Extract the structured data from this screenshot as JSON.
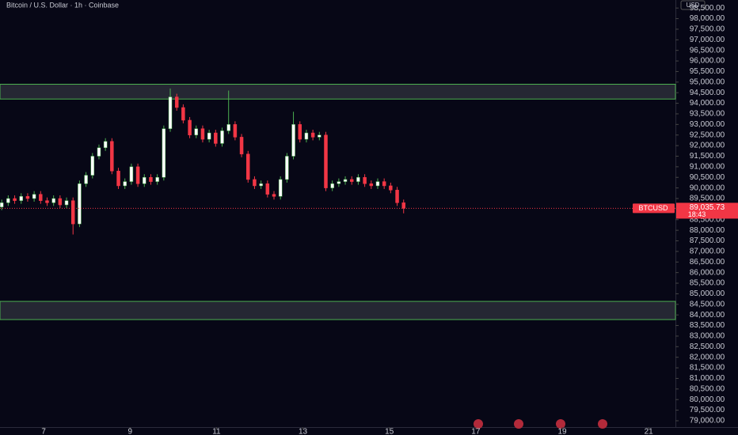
{
  "chart_data": {
    "type": "candlestick",
    "title": "Bitcoin / U.S. Dollar · 1h · Coinbase",
    "currency": "USD",
    "symbol": "BTCUSD",
    "last_label": "89,035.73",
    "countdown": "18:43",
    "x": [
      6.03,
      6.18,
      6.33,
      6.48,
      6.63,
      6.78,
      6.93,
      7.08,
      7.23,
      7.38,
      7.53,
      7.68,
      7.83,
      7.98,
      8.13,
      8.28,
      8.43,
      8.58,
      8.73,
      8.88,
      9.03,
      9.18,
      9.33,
      9.48,
      9.63,
      9.78,
      9.93,
      10.08,
      10.23,
      10.38,
      10.53,
      10.68,
      10.83,
      10.98,
      11.13,
      11.28,
      11.43,
      11.58,
      11.73,
      11.88,
      12.03,
      12.18,
      12.33,
      12.48,
      12.63,
      12.78,
      12.93,
      13.08,
      13.23,
      13.38,
      13.53,
      13.68,
      13.83,
      13.98,
      14.13,
      14.28,
      14.43,
      14.58,
      14.73,
      14.88,
      15.03,
      15.18,
      15.33
    ],
    "open": [
      89100,
      89300,
      89500,
      89400,
      89600,
      89500,
      89700,
      89400,
      89300,
      89500,
      89200,
      89400,
      88300,
      90200,
      90600,
      91500,
      91900,
      92200,
      90800,
      90100,
      90300,
      91000,
      90200,
      90500,
      90300,
      90500,
      92800,
      94300,
      93800,
      93200,
      92500,
      92800,
      92300,
      92600,
      92100,
      92700,
      93000,
      92400,
      91600,
      90400,
      90100,
      90200,
      89700,
      89600,
      90400,
      91500,
      93000,
      92300,
      92600,
      92400,
      92500,
      90000,
      90200,
      90300,
      90400,
      90300,
      90500,
      90200,
      90100,
      90300,
      90100,
      89900,
      89300
    ],
    "high": [
      89450,
      89650,
      89650,
      89750,
      89750,
      89850,
      89850,
      89550,
      89650,
      89650,
      89550,
      89550,
      90350,
      90750,
      91650,
      92050,
      92350,
      92350,
      90950,
      90450,
      91150,
      91150,
      90650,
      90650,
      90650,
      92950,
      94700,
      94450,
      93950,
      93350,
      92950,
      92950,
      92750,
      92750,
      92850,
      94600,
      93150,
      92550,
      91750,
      90550,
      90350,
      90350,
      89850,
      90550,
      91650,
      93600,
      93150,
      92750,
      92750,
      92650,
      92650,
      90350,
      90450,
      90550,
      90550,
      90650,
      90650,
      90350,
      90450,
      90450,
      90250,
      90050,
      89450
    ],
    "low": [
      88950,
      89150,
      89250,
      89250,
      89350,
      89350,
      89250,
      89150,
      89150,
      89050,
      89050,
      87800,
      88150,
      90050,
      90450,
      91350,
      91750,
      90650,
      89950,
      89950,
      90150,
      90050,
      90050,
      90150,
      90150,
      90350,
      92650,
      93650,
      93050,
      92350,
      92350,
      92150,
      92150,
      91950,
      91950,
      92550,
      92250,
      91450,
      90250,
      89950,
      89950,
      89550,
      89450,
      89450,
      90250,
      91350,
      92150,
      92150,
      92250,
      92250,
      89850,
      89850,
      90050,
      90150,
      90150,
      90150,
      90050,
      89950,
      89950,
      89950,
      89750,
      89150,
      88800
    ],
    "close": [
      89300,
      89500,
      89400,
      89600,
      89500,
      89700,
      89400,
      89300,
      89500,
      89200,
      89400,
      88300,
      90200,
      90600,
      91500,
      91900,
      92200,
      90800,
      90100,
      90300,
      91000,
      90200,
      90500,
      90300,
      90500,
      92800,
      94300,
      93800,
      93200,
      92500,
      92800,
      92300,
      92600,
      92100,
      92700,
      93000,
      92400,
      91600,
      90400,
      90100,
      90200,
      89700,
      89600,
      90400,
      91500,
      93000,
      92300,
      92600,
      92400,
      92500,
      90000,
      90200,
      90300,
      90400,
      90300,
      90500,
      90200,
      90100,
      90300,
      90100,
      89900,
      89300,
      89035.73
    ],
    "up_color": "#ffffff",
    "up_wick_color": "#4caf50",
    "down_color": "#f23645",
    "zones": [
      {
        "from": 94200,
        "to": 94900
      },
      {
        "from": 83780,
        "to": 84640
      }
    ],
    "zone_color": "#4caf50",
    "xlim": [
      5.99,
      21.62
    ],
    "xticks": [
      7,
      9,
      11,
      13,
      15,
      17,
      19,
      21
    ],
    "ylim": [
      78700,
      98880
    ],
    "yticks": [
      {
        "value": 79000,
        "label": "79,000.00"
      },
      {
        "value": 79500,
        "label": "79,500.00"
      },
      {
        "value": 80000,
        "label": "80,000.00"
      },
      {
        "value": 80500,
        "label": "80,500.00"
      },
      {
        "value": 81000,
        "label": "81,000.00"
      },
      {
        "value": 81500,
        "label": "81,500.00"
      },
      {
        "value": 82000,
        "label": "82,000.00"
      },
      {
        "value": 82500,
        "label": "82,500.00"
      },
      {
        "value": 83000,
        "label": "83,000.00"
      },
      {
        "value": 83500,
        "label": "83,500.00"
      },
      {
        "value": 84000,
        "label": "84,000.00"
      },
      {
        "value": 84500,
        "label": "84,500.00"
      },
      {
        "value": 85000,
        "label": "85,000.00"
      },
      {
        "value": 85500,
        "label": "85,500.00"
      },
      {
        "value": 86000,
        "label": "86,000.00"
      },
      {
        "value": 86500,
        "label": "86,500.00"
      },
      {
        "value": 87000,
        "label": "87,000.00"
      },
      {
        "value": 87500,
        "label": "87,500.00"
      },
      {
        "value": 88000,
        "label": "88,000.00"
      },
      {
        "value": 88500,
        "label": "88,500.00"
      },
      {
        "value": 89000,
        "label": "89,000.00"
      },
      {
        "value": 89500,
        "label": "89,500.00"
      },
      {
        "value": 90000,
        "label": "90,000.00"
      },
      {
        "value": 90500,
        "label": "90,500.00"
      },
      {
        "value": 91000,
        "label": "91,000.00"
      },
      {
        "value": 91500,
        "label": "91,500.00"
      },
      {
        "value": 92000,
        "label": "92,000.00"
      },
      {
        "value": 92500,
        "label": "92,500.00"
      },
      {
        "value": 93000,
        "label": "93,000.00"
      },
      {
        "value": 93500,
        "label": "93,500.00"
      },
      {
        "value": 94000,
        "label": "94,000.00"
      },
      {
        "value": 94500,
        "label": "94,500.00"
      },
      {
        "value": 95000,
        "label": "95,000.00"
      },
      {
        "value": 95500,
        "label": "95,500.00"
      },
      {
        "value": 96000,
        "label": "96,000.00"
      },
      {
        "value": 96500,
        "label": "96,500.00"
      },
      {
        "value": 97000,
        "label": "97,000.00"
      },
      {
        "value": 97500,
        "label": "97,500.00"
      },
      {
        "value": 98000,
        "label": "98,000.00"
      },
      {
        "value": 98500,
        "label": "98,500.00"
      }
    ]
  }
}
